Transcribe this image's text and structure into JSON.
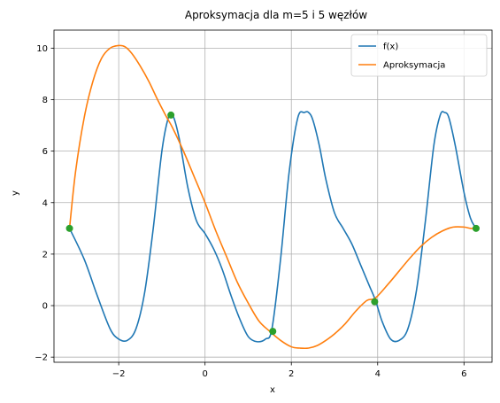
{
  "chart_data": {
    "type": "line",
    "title": "Aproksymacja dla m=5 i 5 węzłów",
    "xlabel": "x",
    "ylabel": "y",
    "xlim": [
      -3.5,
      6.65
    ],
    "ylim": [
      -2.2,
      10.7
    ],
    "xticks": [
      -2,
      0,
      2,
      4,
      6
    ],
    "yticks": [
      -2,
      0,
      2,
      4,
      6,
      8,
      10
    ],
    "xtick_labels": [
      "−2",
      "0",
      "2",
      "4",
      "6"
    ],
    "ytick_labels": [
      "−2",
      "0",
      "2",
      "4",
      "6",
      "8",
      "10"
    ],
    "grid": true,
    "legend_position": "top-right",
    "series": [
      {
        "name": "f(x)",
        "color": "#1f77b4",
        "x": [
          -3.14,
          -2.8,
          -2.5,
          -2.2,
          -2.0,
          -1.8,
          -1.6,
          -1.4,
          -1.2,
          -1.0,
          -0.85,
          -0.75,
          -0.6,
          -0.4,
          -0.2,
          0.0,
          0.2,
          0.4,
          0.6,
          0.8,
          1.0,
          1.2,
          1.4,
          1.55,
          1.75,
          1.95,
          2.15,
          2.3,
          2.4,
          2.5,
          2.65,
          2.8,
          3.0,
          3.2,
          3.4,
          3.6,
          3.8,
          3.95,
          4.1,
          4.3,
          4.5,
          4.7,
          4.9,
          5.1,
          5.3,
          5.45,
          5.55,
          5.65,
          5.8,
          6.0,
          6.15,
          6.28
        ],
        "y": [
          3.0,
          1.8,
          0.4,
          -0.9,
          -1.3,
          -1.35,
          -0.9,
          0.5,
          3.0,
          6.0,
          7.3,
          7.4,
          6.5,
          4.6,
          3.3,
          2.8,
          2.2,
          1.4,
          0.4,
          -0.5,
          -1.2,
          -1.4,
          -1.3,
          -0.9,
          1.8,
          5.2,
          7.3,
          7.5,
          7.5,
          7.2,
          6.2,
          4.9,
          3.6,
          3.0,
          2.4,
          1.6,
          0.8,
          0.2,
          -0.6,
          -1.3,
          -1.35,
          -0.9,
          0.6,
          3.2,
          6.2,
          7.4,
          7.5,
          7.3,
          6.2,
          4.4,
          3.4,
          3.0
        ]
      },
      {
        "name": "Aproksymacja",
        "color": "#ff7f0e",
        "x": [
          -3.14,
          -3.0,
          -2.8,
          -2.6,
          -2.4,
          -2.2,
          -2.0,
          -1.85,
          -1.7,
          -1.5,
          -1.3,
          -1.1,
          -0.9,
          -0.75,
          -0.5,
          -0.25,
          0.0,
          0.25,
          0.5,
          0.75,
          1.0,
          1.25,
          1.5,
          1.75,
          2.0,
          2.2,
          2.4,
          2.6,
          2.8,
          3.0,
          3.25,
          3.5,
          3.75,
          3.95,
          4.25,
          4.5,
          4.75,
          5.0,
          5.25,
          5.5,
          5.75,
          6.0,
          6.15,
          6.28
        ],
        "y": [
          3.0,
          5.2,
          7.3,
          8.7,
          9.6,
          10.0,
          10.1,
          10.05,
          9.8,
          9.3,
          8.7,
          8.0,
          7.35,
          6.9,
          6.0,
          5.0,
          4.0,
          2.9,
          1.9,
          0.9,
          0.1,
          -0.6,
          -1.0,
          -1.35,
          -1.6,
          -1.65,
          -1.65,
          -1.55,
          -1.35,
          -1.1,
          -0.7,
          -0.2,
          0.2,
          0.3,
          0.85,
          1.35,
          1.85,
          2.3,
          2.65,
          2.9,
          3.05,
          3.05,
          3.0,
          3.0
        ]
      }
    ],
    "nodes": {
      "color": "#2ca02c",
      "x": [
        -3.14,
        -0.79,
        1.57,
        3.93,
        6.28
      ],
      "y": [
        3.0,
        7.4,
        -1.0,
        0.15,
        3.0
      ]
    }
  }
}
